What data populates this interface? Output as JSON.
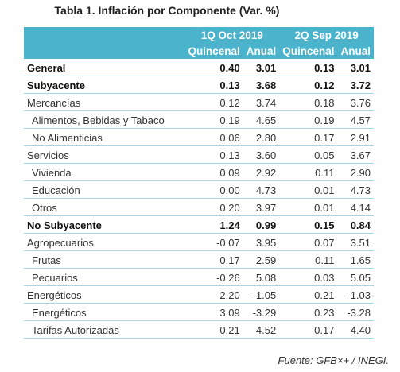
{
  "title": "Tabla 1. Inflación por Componente (Var. %)",
  "table": {
    "groups": [
      "1Q Oct 2019",
      "2Q Sep 2019"
    ],
    "columns": [
      "Quincenal",
      "Anual",
      "Quincenal",
      "Anual"
    ],
    "rows": [
      {
        "label": "General",
        "bold": true,
        "indent": false,
        "values": [
          "0.40",
          "3.01",
          "0.13",
          "3.01"
        ]
      },
      {
        "label": "Subyacente",
        "bold": true,
        "indent": false,
        "values": [
          "0.13",
          "3.68",
          "0.12",
          "3.72"
        ]
      },
      {
        "label": "Mercancías",
        "bold": false,
        "indent": false,
        "values": [
          "0.12",
          "3.74",
          "0.18",
          "3.76"
        ]
      },
      {
        "label": "Alimentos, Bebidas y Tabaco",
        "bold": false,
        "indent": true,
        "values": [
          "0.19",
          "4.65",
          "0.19",
          "4.57"
        ]
      },
      {
        "label": "No Alimenticias",
        "bold": false,
        "indent": true,
        "values": [
          "0.06",
          "2.80",
          "0.17",
          "2.91"
        ]
      },
      {
        "label": "Servicios",
        "bold": false,
        "indent": false,
        "values": [
          "0.13",
          "3.60",
          "0.05",
          "3.67"
        ]
      },
      {
        "label": "Vivienda",
        "bold": false,
        "indent": true,
        "values": [
          "0.09",
          "2.92",
          "0.11",
          "2.90"
        ]
      },
      {
        "label": "Educación",
        "bold": false,
        "indent": true,
        "values": [
          "0.00",
          "4.73",
          "0.01",
          "4.73"
        ]
      },
      {
        "label": "Otros",
        "bold": false,
        "indent": true,
        "values": [
          "0.20",
          "3.97",
          "0.01",
          "4.14"
        ]
      },
      {
        "label": "No Subyacente",
        "bold": true,
        "indent": false,
        "values": [
          "1.24",
          "0.99",
          "0.15",
          "0.84"
        ]
      },
      {
        "label": "Agropecuarios",
        "bold": false,
        "indent": false,
        "values": [
          "-0.07",
          "3.95",
          "0.07",
          "3.51"
        ]
      },
      {
        "label": "Frutas",
        "bold": false,
        "indent": true,
        "values": [
          "0.17",
          "2.59",
          "0.11",
          "1.65"
        ]
      },
      {
        "label": "Pecuarios",
        "bold": false,
        "indent": true,
        "values": [
          "-0.26",
          "5.08",
          "0.03",
          "5.05"
        ]
      },
      {
        "label": "Energéticos",
        "bold": false,
        "indent": false,
        "values": [
          "2.20",
          "-1.05",
          "0.21",
          "-1.03"
        ]
      },
      {
        "label": "Energéticos",
        "bold": false,
        "indent": true,
        "values": [
          "3.09",
          "-3.29",
          "0.23",
          "-3.28"
        ]
      },
      {
        "label": "Tarifas Autorizadas",
        "bold": false,
        "indent": true,
        "values": [
          "0.21",
          "4.52",
          "0.17",
          "4.40"
        ]
      }
    ]
  },
  "source": "Fuente: GFB×+ / INEGI."
}
